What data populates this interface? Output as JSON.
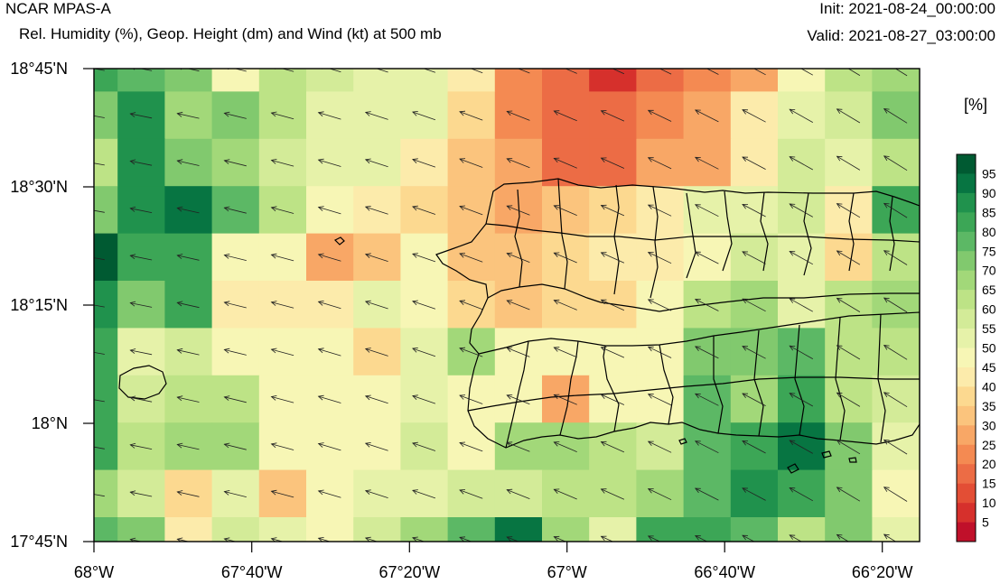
{
  "header": {
    "model": "NCAR MPAS-A",
    "subtitle": "Rel. Humidity (%), Geop. Height (dm) and Wind (kt) at 500 mb",
    "init": "Init: 2021-08-24_00:00:00",
    "valid": "Valid: 2021-08-27_03:00:00"
  },
  "axes": {
    "x_ticks": [
      "68°W",
      "67°40'W",
      "67°20'W",
      "67°W",
      "66°40'W",
      "66°20'W"
    ],
    "y_ticks": [
      "18°45'N",
      "18°30'N",
      "18°15'N",
      "18°N",
      "17°45'N"
    ]
  },
  "colorbar": {
    "unit": "[%]",
    "levels": [
      "5",
      "10",
      "15",
      "20",
      "25",
      "30",
      "35",
      "40",
      "45",
      "50",
      "55",
      "60",
      "65",
      "70",
      "75",
      "80",
      "85",
      "90",
      "95"
    ],
    "colors": [
      "#c0102a",
      "#d6302c",
      "#e34e35",
      "#ec6c45",
      "#f48a52",
      "#f8a766",
      "#fbc47d",
      "#fcd990",
      "#fcebab",
      "#f7f6b5",
      "#e6f2a9",
      "#d3eb98",
      "#bde386",
      "#a2d879",
      "#81c96e",
      "#5cb865",
      "#3ca656",
      "#20924d",
      "#077542",
      "#005a32"
    ]
  },
  "chart_data": {
    "type": "heatmap",
    "title": "Rel. Humidity (%), Geop. Height (dm) and Wind (kt) at 500 mb",
    "x_range_lon": [
      -68.0,
      -66.217
    ],
    "y_range_lat": [
      17.75,
      18.75
    ],
    "rh_bin_grid": [
      [
        16,
        15,
        14,
        9,
        12,
        11,
        10,
        10,
        8,
        4,
        3,
        1,
        3,
        4,
        5,
        9,
        12,
        13
      ],
      [
        14,
        17,
        13,
        14,
        12,
        10,
        10,
        10,
        7,
        4,
        3,
        3,
        4,
        5,
        8,
        10,
        11,
        14
      ],
      [
        12,
        17,
        14,
        13,
        11,
        10,
        10,
        8,
        6,
        5,
        3,
        3,
        5,
        5,
        8,
        11,
        10,
        12
      ],
      [
        14,
        17,
        18,
        15,
        12,
        9,
        8,
        7,
        6,
        5,
        6,
        7,
        8,
        10,
        10,
        11,
        8,
        16
      ],
      [
        19,
        16,
        16,
        9,
        9,
        5,
        6,
        9,
        6,
        6,
        7,
        8,
        8,
        9,
        11,
        10,
        7,
        12
      ],
      [
        17,
        14,
        16,
        8,
        8,
        8,
        10,
        9,
        7,
        6,
        7,
        7,
        9,
        12,
        13,
        10,
        12,
        13
      ],
      [
        16,
        10,
        11,
        9,
        9,
        9,
        7,
        10,
        13,
        9,
        9,
        9,
        9,
        14,
        14,
        15,
        12,
        12
      ],
      [
        16,
        11,
        12,
        12,
        9,
        9,
        9,
        10,
        9,
        9,
        5,
        9,
        9,
        15,
        13,
        16,
        12,
        11
      ],
      [
        16,
        12,
        13,
        13,
        9,
        9,
        9,
        11,
        9,
        13,
        13,
        12,
        11,
        15,
        16,
        18,
        14,
        10
      ],
      [
        13,
        11,
        7,
        10,
        6,
        9,
        10,
        10,
        11,
        11,
        12,
        12,
        13,
        15,
        17,
        16,
        14,
        9
      ],
      [
        15,
        14,
        8,
        11,
        10,
        9,
        11,
        13,
        15,
        18,
        13,
        10,
        16,
        16,
        15,
        12,
        14,
        10
      ],
      [
        12,
        12,
        11,
        8,
        10,
        13,
        17,
        19,
        14,
        17,
        13,
        15,
        15,
        13,
        12,
        13,
        10,
        10
      ]
    ],
    "wind_direction": "easterly to east-southeasterly across the domain"
  }
}
